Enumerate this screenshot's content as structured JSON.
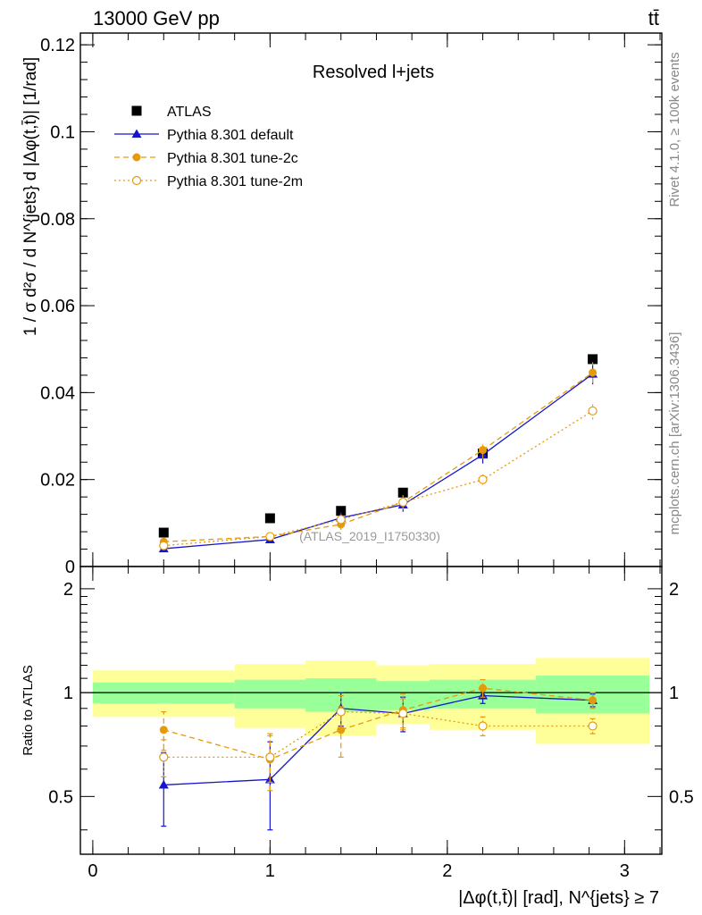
{
  "header": {
    "energy_label": "13000 GeV pp",
    "process_label": "tt̄",
    "panel_title": "Resolved l+jets",
    "analysis_id": "(ATLAS_2019_I1750330)",
    "side_rivet": "Rivet 4.1.0, ≥ 100k events",
    "side_mcplots": "mcplots.cern.ch [arXiv:1306.3436]"
  },
  "colors": {
    "data": "#000000",
    "default": "#1515d0",
    "tune2c": "#e59a0c",
    "tune2m": "#e59a0c",
    "band_inner": "#99ff99",
    "band_outer": "#ffff99"
  },
  "chart_data": {
    "type": "scatter",
    "main": {
      "ylabel": "1 / σ d²σ / d N^{jets} d |Δφ(t,t̄)| [1/rad]",
      "ylim": [
        0,
        0.1227
      ],
      "y_ticks": [
        "0",
        "0.02",
        "0.04",
        "0.06",
        "0.08",
        "0.1",
        "0.12"
      ],
      "y_tick_values": [
        0,
        0.02,
        0.04,
        0.06,
        0.08,
        0.1,
        0.12
      ]
    },
    "ratio": {
      "ylabel": "Ratio to ATLAS",
      "ylim": [
        0.34,
        2.32
      ],
      "y_ticks": [
        "0.5",
        "1",
        "2"
      ],
      "y_tick_values": [
        0.5,
        1,
        2
      ]
    },
    "x": {
      "xlabel": "|Δφ(t,t̄)| [rad], N^{jets} ≥ 7",
      "xlim": [
        -0.07,
        3.21
      ],
      "ticks": [
        "0",
        "1",
        "2",
        "3"
      ],
      "tick_values": [
        0,
        1,
        2,
        3
      ]
    },
    "bins": [
      {
        "lo": 0.0,
        "hi": 0.8,
        "x": 0.4
      },
      {
        "lo": 0.8,
        "hi": 1.2,
        "x": 1.0
      },
      {
        "lo": 1.2,
        "hi": 1.6,
        "x": 1.4
      },
      {
        "lo": 1.6,
        "hi": 1.9,
        "x": 1.75
      },
      {
        "lo": 1.9,
        "hi": 2.5,
        "x": 2.2
      },
      {
        "lo": 2.5,
        "hi": 3.14,
        "x": 2.82
      }
    ],
    "data_band": {
      "inner_lo": [
        0.93,
        0.9,
        0.88,
        0.89,
        0.9,
        0.87
      ],
      "inner_hi": [
        1.07,
        1.09,
        1.1,
        1.08,
        1.09,
        1.12
      ],
      "outer_lo": [
        0.85,
        0.79,
        0.75,
        0.81,
        0.78,
        0.71
      ],
      "outer_hi": [
        1.16,
        1.21,
        1.24,
        1.2,
        1.21,
        1.26
      ]
    },
    "series": [
      {
        "name": "ATLAS",
        "key": "data",
        "marker": "square",
        "values": [
          0.0078,
          0.0111,
          0.0128,
          0.017,
          0.026,
          0.0477
        ],
        "ratio": [
          1,
          1,
          1,
          1,
          1,
          1
        ]
      },
      {
        "name": "Pythia 8.301 default",
        "key": "default",
        "marker": "triangle",
        "line": "solid",
        "values": [
          0.0041,
          0.0062,
          0.0112,
          0.0142,
          0.0257,
          0.0443
        ],
        "errors": [
          0.0006,
          0.0008,
          0.0013,
          0.0016,
          0.002,
          0.0024
        ],
        "ratio": [
          0.54,
          0.56,
          0.9,
          0.87,
          0.98,
          0.95
        ],
        "ratio_errors": [
          0.13,
          0.16,
          0.1,
          0.1,
          0.05,
          0.04
        ]
      },
      {
        "name": "Pythia 8.301 tune-2c",
        "key": "tune2c",
        "marker": "filled-circle",
        "line": "dashed",
        "values": [
          0.0057,
          0.0069,
          0.0097,
          0.0148,
          0.0268,
          0.0446
        ],
        "errors": [
          0.0006,
          0.0008,
          0.0013,
          0.0017,
          0.002,
          0.0024
        ],
        "ratio": [
          0.78,
          0.64,
          0.78,
          0.89,
          1.03,
          0.95
        ],
        "ratio_errors": [
          0.1,
          0.12,
          0.13,
          0.1,
          0.06,
          0.05
        ]
      },
      {
        "name": "Pythia 8.301 tune-2m",
        "key": "tune2m",
        "marker": "open-circle",
        "line": "dotted",
        "values": [
          0.0048,
          0.0069,
          0.0108,
          0.0148,
          0.02,
          0.0358
        ],
        "errors": [
          0.0005,
          0.0008,
          0.0012,
          0.0016,
          0.0012,
          0.002
        ],
        "ratio": [
          0.65,
          0.65,
          0.88,
          0.87,
          0.8,
          0.8
        ],
        "ratio_errors": [
          0.08,
          0.1,
          0.1,
          0.09,
          0.05,
          0.04
        ]
      }
    ]
  }
}
